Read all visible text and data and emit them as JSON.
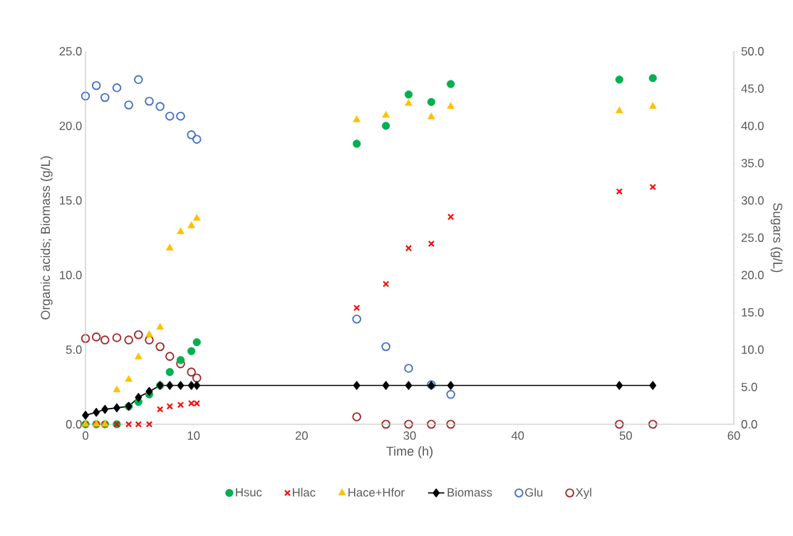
{
  "chart_data": {
    "type": "scatter",
    "xlabel": "Time (h)",
    "ylabel": "Organic acids; Biomass (g/L)",
    "y2label": "Sugars (g/L)",
    "xlim": [
      0,
      60
    ],
    "xticks": [
      0,
      10,
      20,
      30,
      40,
      50,
      60
    ],
    "ylim": [
      0,
      25
    ],
    "yticks": [
      {
        "value": 0,
        "label": "0.0"
      },
      {
        "value": 5,
        "label": "5.0"
      },
      {
        "value": 10,
        "label": "10.0"
      },
      {
        "value": 15,
        "label": "15.0"
      },
      {
        "value": 20,
        "label": "20.0"
      },
      {
        "value": 25,
        "label": "25.0"
      }
    ],
    "y2lim": [
      0,
      50
    ],
    "y2ticks": [
      {
        "value": 0,
        "label": "0.0"
      },
      {
        "value": 5,
        "label": "5.0"
      },
      {
        "value": 10,
        "label": "10.0"
      },
      {
        "value": 15,
        "label": "15.0"
      },
      {
        "value": 20,
        "label": "20.0"
      },
      {
        "value": 25,
        "label": "25.0"
      },
      {
        "value": 30,
        "label": "30.0"
      },
      {
        "value": 35,
        "label": "35.0"
      },
      {
        "value": 40,
        "label": "40.0"
      },
      {
        "value": 45,
        "label": "45.0"
      },
      {
        "value": 50,
        "label": "50.0"
      }
    ],
    "grid": false,
    "legend": "bottom",
    "series": [
      {
        "name": "Hsuc",
        "marker": "circle",
        "color": "#00b050",
        "x": [
          0,
          1.0,
          1.8,
          2.9,
          4.0,
          4.9,
          5.9,
          6.9,
          7.8,
          8.8,
          9.8,
          10.3,
          25.1,
          27.8,
          29.9,
          32.0,
          33.8,
          49.4,
          52.5
        ],
        "values": [
          0,
          0,
          0,
          0,
          1.2,
          1.5,
          2.0,
          2.6,
          3.5,
          4.3,
          4.9,
          5.5,
          18.8,
          20.0,
          22.1,
          21.6,
          22.8,
          23.1,
          23.2
        ]
      },
      {
        "name": "Hlac",
        "marker": "cross",
        "color": "#ff0000",
        "x": [
          0,
          1.0,
          1.8,
          2.9,
          4.0,
          4.9,
          5.9,
          6.9,
          7.8,
          8.8,
          9.8,
          10.3,
          25.1,
          27.8,
          29.9,
          32.0,
          33.8,
          49.4,
          52.5
        ],
        "values": [
          0,
          0,
          0,
          0,
          0,
          0,
          0,
          1.0,
          1.2,
          1.3,
          1.4,
          1.4,
          7.8,
          9.4,
          11.8,
          12.1,
          13.9,
          15.6,
          15.9
        ]
      },
      {
        "name": "Hace+Hfor",
        "marker": "triangle",
        "color": "#ffc000",
        "x": [
          0,
          1.0,
          1.8,
          2.9,
          4.0,
          4.9,
          5.9,
          6.9,
          7.8,
          8.8,
          9.8,
          10.3,
          25.1,
          27.8,
          29.9,
          32.0,
          33.8,
          49.4,
          52.5
        ],
        "values": [
          0,
          0,
          0,
          2.3,
          3.0,
          4.5,
          6.0,
          6.5,
          11.8,
          12.9,
          13.3,
          13.8,
          20.4,
          20.7,
          21.5,
          20.6,
          21.3,
          21.0,
          21.3
        ]
      },
      {
        "name": "Biomass",
        "type": "line",
        "marker": "diamond",
        "color": "#000000",
        "x": [
          0,
          1.0,
          1.8,
          2.9,
          4.0,
          4.9,
          5.9,
          6.9,
          7.8,
          8.8,
          9.8,
          10.3,
          25.1,
          27.8,
          29.9,
          32.0,
          33.8,
          49.4,
          52.5
        ],
        "values": [
          0.6,
          0.8,
          1.0,
          1.1,
          1.2,
          1.8,
          2.2,
          2.6,
          2.6,
          2.6,
          2.6,
          2.6,
          2.6,
          2.6,
          2.6,
          2.6,
          2.6,
          2.6,
          2.6
        ]
      },
      {
        "name": "Glu",
        "marker": "circle",
        "axis": "y2",
        "color": "#4472c4",
        "x": [
          0,
          1.0,
          1.8,
          2.9,
          4.0,
          4.9,
          5.9,
          6.9,
          7.8,
          8.8,
          9.8,
          10.3,
          25.1,
          27.8,
          29.9,
          32.0,
          33.8
        ],
        "values": [
          44.0,
          45.4,
          43.8,
          45.1,
          42.8,
          46.2,
          43.3,
          42.6,
          41.3,
          41.3,
          38.8,
          38.2,
          14.1,
          10.4,
          7.5,
          5.3,
          4.0
        ]
      },
      {
        "name": "Xyl",
        "marker": "circle",
        "axis": "y2",
        "color": "#9e2a2b",
        "x": [
          0,
          1.0,
          1.8,
          2.9,
          4.0,
          4.9,
          5.9,
          6.9,
          7.8,
          8.8,
          9.8,
          10.3,
          25.1,
          27.8,
          29.9,
          32.0,
          33.8,
          49.4,
          52.5
        ],
        "values": [
          11.5,
          11.7,
          11.3,
          11.6,
          11.3,
          12.0,
          11.3,
          10.4,
          9.1,
          8.1,
          7.0,
          6.2,
          1.0,
          0,
          0,
          0,
          0,
          0,
          0
        ]
      }
    ]
  }
}
